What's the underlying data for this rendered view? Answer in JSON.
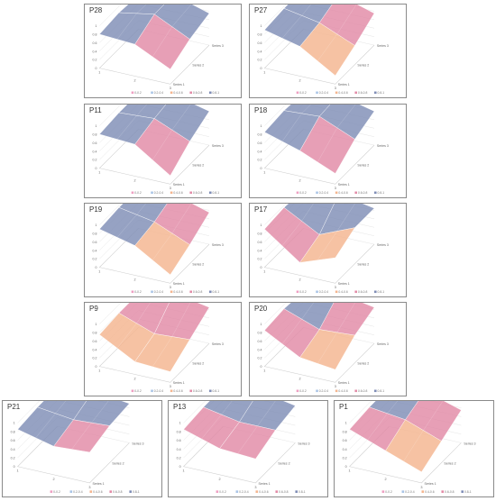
{
  "chart_data": [
    {
      "type": "surface3d",
      "title": "P28",
      "x": [
        "1",
        "2",
        "3"
      ],
      "series": [
        {
          "name": "Series 1",
          "values": [
            0.8,
            0.75,
            0.35
          ]
        },
        {
          "name": "Series 2",
          "values": [
            0.85,
            1.0,
            0.6
          ]
        },
        {
          "name": "Series 3",
          "values": [
            0.8,
            1.0,
            0.75
          ]
        }
      ],
      "zlim": [
        0,
        1
      ],
      "zticks": [
        "0",
        "0.2",
        "0.4",
        "0.6",
        "0.8",
        "1"
      ],
      "legend": [
        "0-0.2",
        "0.2-0.4",
        "0.4-0.6",
        "0.6-0.8",
        "0.8-1"
      ]
    },
    {
      "type": "surface3d",
      "title": "P27",
      "x": [
        "1",
        "2",
        "3"
      ],
      "series": [
        {
          "name": "Series 1",
          "values": [
            0.9,
            0.7,
            0.2
          ]
        },
        {
          "name": "Series 2",
          "values": [
            0.95,
            0.8,
            0.45
          ]
        },
        {
          "name": "Series 3",
          "values": [
            0.95,
            1.0,
            0.75
          ]
        }
      ],
      "zlim": [
        0,
        1
      ],
      "zticks": [
        "0",
        "0.2",
        "0.4",
        "0.6",
        "0.8",
        "1"
      ],
      "legend": [
        "0-0.2",
        "0.2-0.4",
        "0.4-0.6",
        "0.6-0.8",
        "0.8-1"
      ]
    },
    {
      "type": "surface3d",
      "title": "P11",
      "x": [
        "1",
        "2",
        "3"
      ],
      "series": [
        {
          "name": "Series 1",
          "values": [
            0.8,
            0.75,
            0.2
          ]
        },
        {
          "name": "Series 2",
          "values": [
            0.85,
            0.9,
            0.55
          ]
        },
        {
          "name": "Series 3",
          "values": [
            0.85,
            1.0,
            0.8
          ]
        }
      ],
      "zlim": [
        0,
        1
      ],
      "zticks": [
        "0",
        "0.2",
        "0.4",
        "0.6",
        "0.8",
        "1"
      ],
      "legend": [
        "0-0.2",
        "0.2-0.4",
        "0.4-0.6",
        "0.6-0.8",
        "0.8-1"
      ]
    },
    {
      "type": "surface3d",
      "title": "P18",
      "x": [
        "1",
        "2",
        "3"
      ],
      "series": [
        {
          "name": "Series 1",
          "values": [
            0.85,
            0.6,
            0.25
          ]
        },
        {
          "name": "Series 2",
          "values": [
            0.9,
            0.95,
            0.6
          ]
        },
        {
          "name": "Series 3",
          "values": [
            0.85,
            1.0,
            0.8
          ]
        }
      ],
      "zlim": [
        0,
        1
      ],
      "zticks": [
        "0",
        "0.2",
        "0.4",
        "0.6",
        "0.8",
        "1"
      ],
      "legend": [
        "0-0.2",
        "0.2-0.4",
        "0.4-0.6",
        "0.6-0.8",
        "0.8-1"
      ]
    },
    {
      "type": "surface3d",
      "title": "P19",
      "x": [
        "1",
        "2",
        "3"
      ],
      "series": [
        {
          "name": "Series 1",
          "values": [
            0.9,
            0.7,
            0.2
          ]
        },
        {
          "name": "Series 2",
          "values": [
            0.95,
            0.8,
            0.45
          ]
        },
        {
          "name": "Series 3",
          "values": [
            0.95,
            1.0,
            0.75
          ]
        }
      ],
      "zlim": [
        0,
        1
      ],
      "zticks": [
        "0",
        "0.2",
        "0.4",
        "0.6",
        "0.8",
        "1"
      ],
      "legend": [
        "0-0.2",
        "0.2-0.4",
        "0.4-0.6",
        "0.6-0.8",
        "0.8-1"
      ]
    },
    {
      "type": "surface3d",
      "title": "P17",
      "x": [
        "1",
        "2",
        "3"
      ],
      "series": [
        {
          "name": "Series 1",
          "values": [
            0.9,
            0.3,
            0.6
          ]
        },
        {
          "name": "Series 2",
          "values": [
            0.95,
            0.5,
            0.85
          ]
        },
        {
          "name": "Series 3",
          "values": [
            0.9,
            1.0,
            0.85
          ]
        }
      ],
      "zlim": [
        0,
        1
      ],
      "zticks": [
        "0",
        "0.2",
        "0.4",
        "0.6",
        "0.8",
        "1"
      ],
      "legend": [
        "0-0.2",
        "0.2-0.4",
        "0.4-0.6",
        "0.6-0.8",
        "0.8-1"
      ]
    },
    {
      "type": "surface3d",
      "title": "P9",
      "x": [
        "1",
        "2",
        "3"
      ],
      "series": [
        {
          "name": "Series 1",
          "values": [
            0.75,
            0.3,
            0.25
          ]
        },
        {
          "name": "Series 2",
          "values": [
            0.8,
            0.5,
            0.55
          ]
        },
        {
          "name": "Series 3",
          "values": [
            0.8,
            1.0,
            0.85
          ]
        }
      ],
      "zlim": [
        0,
        1
      ],
      "zticks": [
        "0",
        "0.2",
        "0.4",
        "0.6",
        "0.8",
        "1"
      ],
      "legend": [
        "0-0.2",
        "0.2-0.4",
        "0.4-0.6",
        "0.6-0.8",
        "0.8-1"
      ]
    },
    {
      "type": "surface3d",
      "title": "P20",
      "x": [
        "1",
        "2",
        "3"
      ],
      "series": [
        {
          "name": "Series 1",
          "values": [
            0.85,
            0.4,
            0.3
          ]
        },
        {
          "name": "Series 2",
          "values": [
            0.9,
            0.6,
            0.65
          ]
        },
        {
          "name": "Series 3",
          "values": [
            0.85,
            1.0,
            0.85
          ]
        }
      ],
      "zlim": [
        0,
        1
      ],
      "zticks": [
        "0",
        "0.2",
        "0.4",
        "0.6",
        "0.8",
        "1"
      ],
      "legend": [
        "0-0.2",
        "0.2-0.4",
        "0.4-0.6",
        "0.6-0.8",
        "0.8-1"
      ]
    },
    {
      "type": "surface3d",
      "title": "P21",
      "x": [
        "1",
        "2",
        "3"
      ],
      "series": [
        {
          "name": "Series 1",
          "values": [
            0.85,
            0.65,
            0.7
          ]
        },
        {
          "name": "Series 2",
          "values": [
            0.9,
            0.8,
            0.85
          ]
        },
        {
          "name": "Series 3",
          "values": [
            0.9,
            1.0,
            0.9
          ]
        }
      ],
      "zlim": [
        0,
        1
      ],
      "zticks": [
        "0",
        "0.2",
        "0.4",
        "0.6",
        "0.8",
        "1"
      ],
      "legend": [
        "0-0.2",
        "0.2-0.4",
        "0.4-0.6",
        "0.6-0.8",
        "0.8-1"
      ]
    },
    {
      "type": "surface3d",
      "title": "P13",
      "x": [
        "1",
        "2",
        "3"
      ],
      "series": [
        {
          "name": "Series 1",
          "values": [
            0.85,
            0.6,
            0.55
          ]
        },
        {
          "name": "Series 2",
          "values": [
            0.9,
            0.75,
            0.75
          ]
        },
        {
          "name": "Series 3",
          "values": [
            0.9,
            1.0,
            0.85
          ]
        }
      ],
      "zlim": [
        0,
        1
      ],
      "zticks": [
        "0",
        "0.2",
        "0.4",
        "0.6",
        "0.8",
        "1"
      ],
      "legend": [
        "0-0.2",
        "0.2-0.4",
        "0.4-0.6",
        "0.6-0.8",
        "0.8-1"
      ]
    },
    {
      "type": "surface3d",
      "title": "P1",
      "x": [
        "1",
        "2",
        "3"
      ],
      "series": [
        {
          "name": "Series 1",
          "values": [
            0.85,
            0.55,
            0.25
          ]
        },
        {
          "name": "Series 2",
          "values": [
            0.9,
            0.8,
            0.5
          ]
        },
        {
          "name": "Series 3",
          "values": [
            0.9,
            1.0,
            0.75
          ]
        }
      ],
      "zlim": [
        0,
        1
      ],
      "zticks": [
        "0",
        "0.2",
        "0.4",
        "0.6",
        "0.8",
        "1"
      ],
      "legend": [
        "0-0.2",
        "0.2-0.4",
        "0.4-0.6",
        "0.6-0.8",
        "0.8-1"
      ]
    }
  ],
  "colors": {
    "band1": "#ee9fc2",
    "band2": "#a9c4e6",
    "band3": "#f4b58f",
    "band4": "#e28aa6",
    "band5": "#7f8db6",
    "border": "#8a8a8a"
  }
}
